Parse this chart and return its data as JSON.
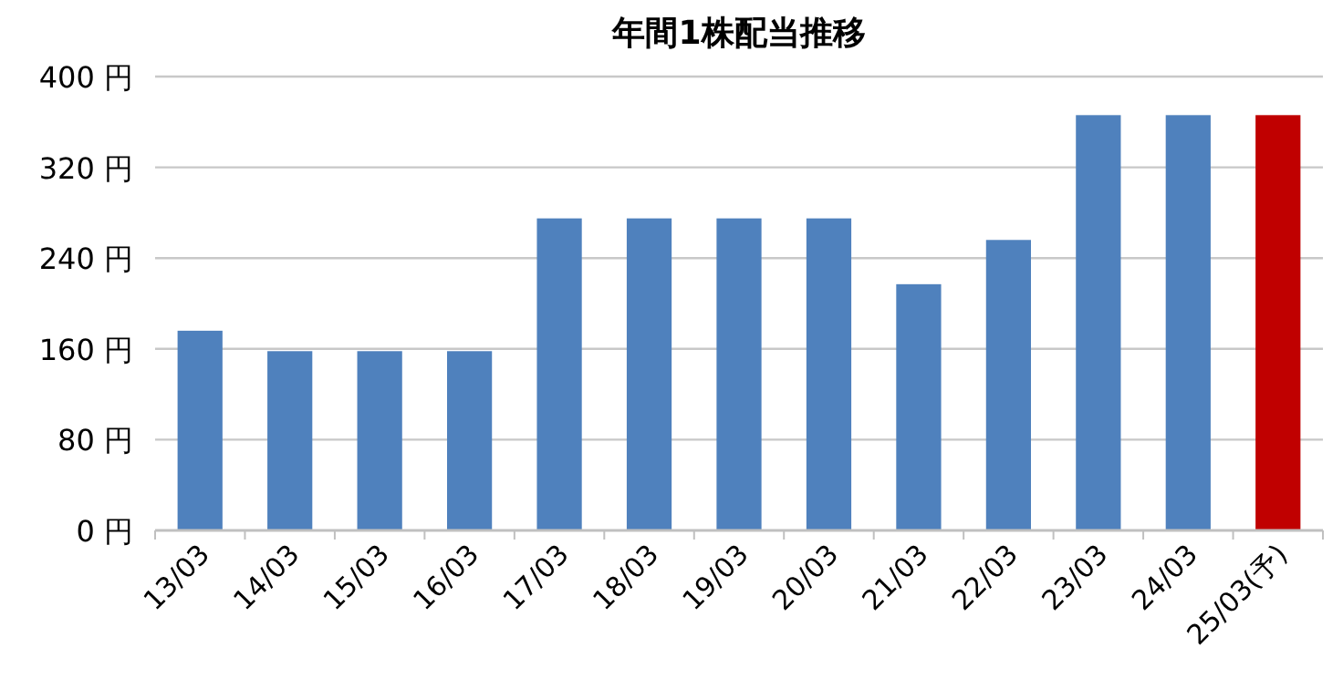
{
  "chart_data": {
    "type": "bar",
    "title": "年間1株配当推移",
    "categories": [
      "13/03",
      "14/03",
      "15/03",
      "16/03",
      "17/03",
      "18/03",
      "19/03",
      "20/03",
      "21/03",
      "22/03",
      "23/03",
      "24/03",
      "25/03(予)"
    ],
    "values": [
      176,
      158,
      158,
      158,
      275,
      275,
      275,
      275,
      217,
      256,
      366,
      366,
      366
    ],
    "colors": [
      "#4f81bd",
      "#4f81bd",
      "#4f81bd",
      "#4f81bd",
      "#4f81bd",
      "#4f81bd",
      "#4f81bd",
      "#4f81bd",
      "#4f81bd",
      "#4f81bd",
      "#4f81bd",
      "#4f81bd",
      "#c00000"
    ],
    "ylim": [
      0,
      400
    ],
    "yticks": [
      {
        "value": 0,
        "label": "0 円"
      },
      {
        "value": 80,
        "label": "80 円"
      },
      {
        "value": 160,
        "label": "160 円"
      },
      {
        "value": 240,
        "label": "240 円"
      },
      {
        "value": 320,
        "label": "320 円"
      },
      {
        "value": 400,
        "label": "400 円"
      }
    ],
    "grid": "y"
  }
}
